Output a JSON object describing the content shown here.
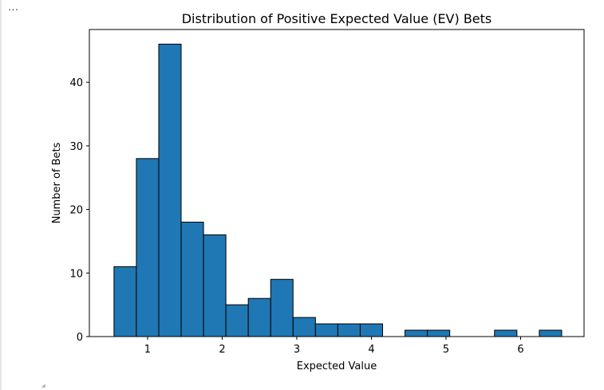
{
  "output": {
    "ellipsis": "…"
  },
  "chart_data": {
    "type": "bar",
    "title": "Distribution of Positive Expected Value (EV) Bets",
    "xlabel": "Expected Value",
    "ylabel": "Number of Bets",
    "bin_start": 0.55,
    "bin_width": 0.3,
    "values": [
      11,
      28,
      46,
      18,
      16,
      5,
      6,
      9,
      3,
      2,
      2,
      2,
      0,
      1,
      1,
      0,
      0,
      1,
      0,
      1
    ],
    "xlim": [
      0.22,
      6.85
    ],
    "ylim": [
      0,
      48.3
    ],
    "xticks": [
      1,
      2,
      3,
      4,
      5,
      6
    ],
    "yticks": [
      0,
      10,
      20,
      30,
      40
    ],
    "bar_color": "#1f77b4",
    "edge_color": "#000000",
    "grid": false,
    "legend": "none"
  }
}
